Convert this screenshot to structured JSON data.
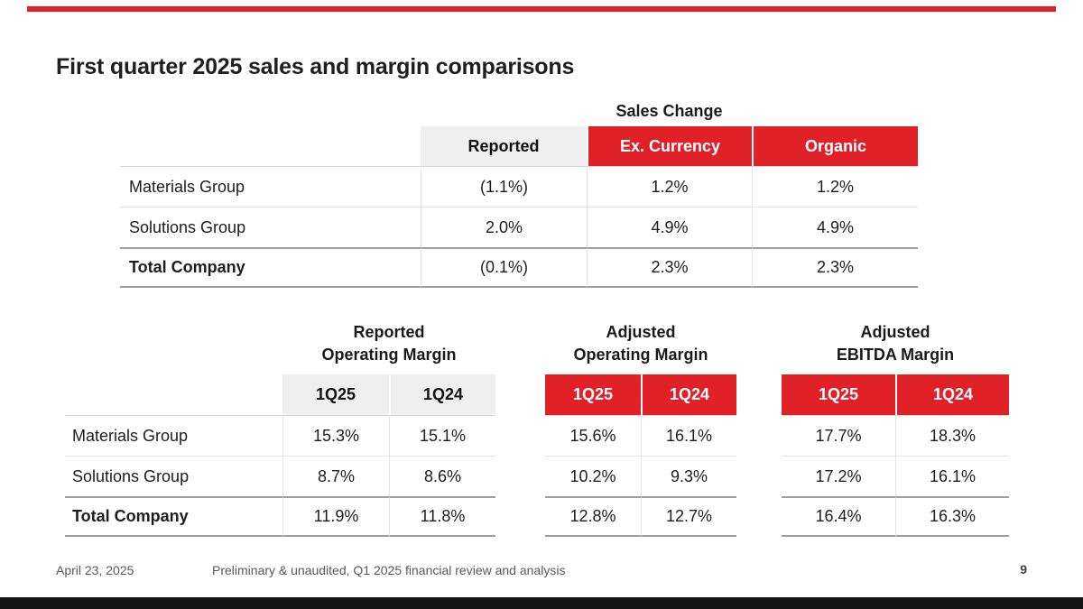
{
  "colors": {
    "accent_red": "#E02128",
    "header_gray": "#EFEFEF",
    "bottom_bar_black": "#141414"
  },
  "title": "First quarter 2025 sales and margin comparisons",
  "sales_table": {
    "title": "Sales Change",
    "columns": [
      "Reported",
      "Ex. Currency",
      "Organic"
    ],
    "rows": [
      {
        "label": "Materials Group",
        "reported": "(1.1%)",
        "ex_currency": "1.2%",
        "organic": "1.2%"
      },
      {
        "label": "Solutions Group",
        "reported": "2.0%",
        "ex_currency": "4.9%",
        "organic": "4.9%"
      },
      {
        "label": "Total Company",
        "reported": "(0.1%)",
        "ex_currency": "2.3%",
        "organic": "2.3%"
      }
    ]
  },
  "row_labels": [
    "Materials Group",
    "Solutions Group",
    "Total Company"
  ],
  "margin_tables": [
    {
      "title_line1": "Reported",
      "title_line2": "Operating Margin",
      "header_style": "gray",
      "columns": [
        "1Q25",
        "1Q24"
      ],
      "rows": [
        [
          "15.3%",
          "15.1%"
        ],
        [
          "8.7%",
          "8.6%"
        ],
        [
          "11.9%",
          "11.8%"
        ]
      ]
    },
    {
      "title_line1": "Adjusted",
      "title_line2": "Operating Margin",
      "header_style": "red",
      "columns": [
        "1Q25",
        "1Q24"
      ],
      "rows": [
        [
          "15.6%",
          "16.1%"
        ],
        [
          "10.2%",
          "9.3%"
        ],
        [
          "12.8%",
          "12.7%"
        ]
      ]
    },
    {
      "title_line1": "Adjusted",
      "title_line2": "EBITDA Margin",
      "header_style": "red",
      "columns": [
        "1Q25",
        "1Q24"
      ],
      "rows": [
        [
          "17.7%",
          "18.3%"
        ],
        [
          "17.2%",
          "16.1%"
        ],
        [
          "16.4%",
          "16.3%"
        ]
      ]
    }
  ],
  "footer": {
    "date": "April 23, 2025",
    "note": "Preliminary & unaudited, Q1 2025 financial review and analysis",
    "page": "9"
  }
}
